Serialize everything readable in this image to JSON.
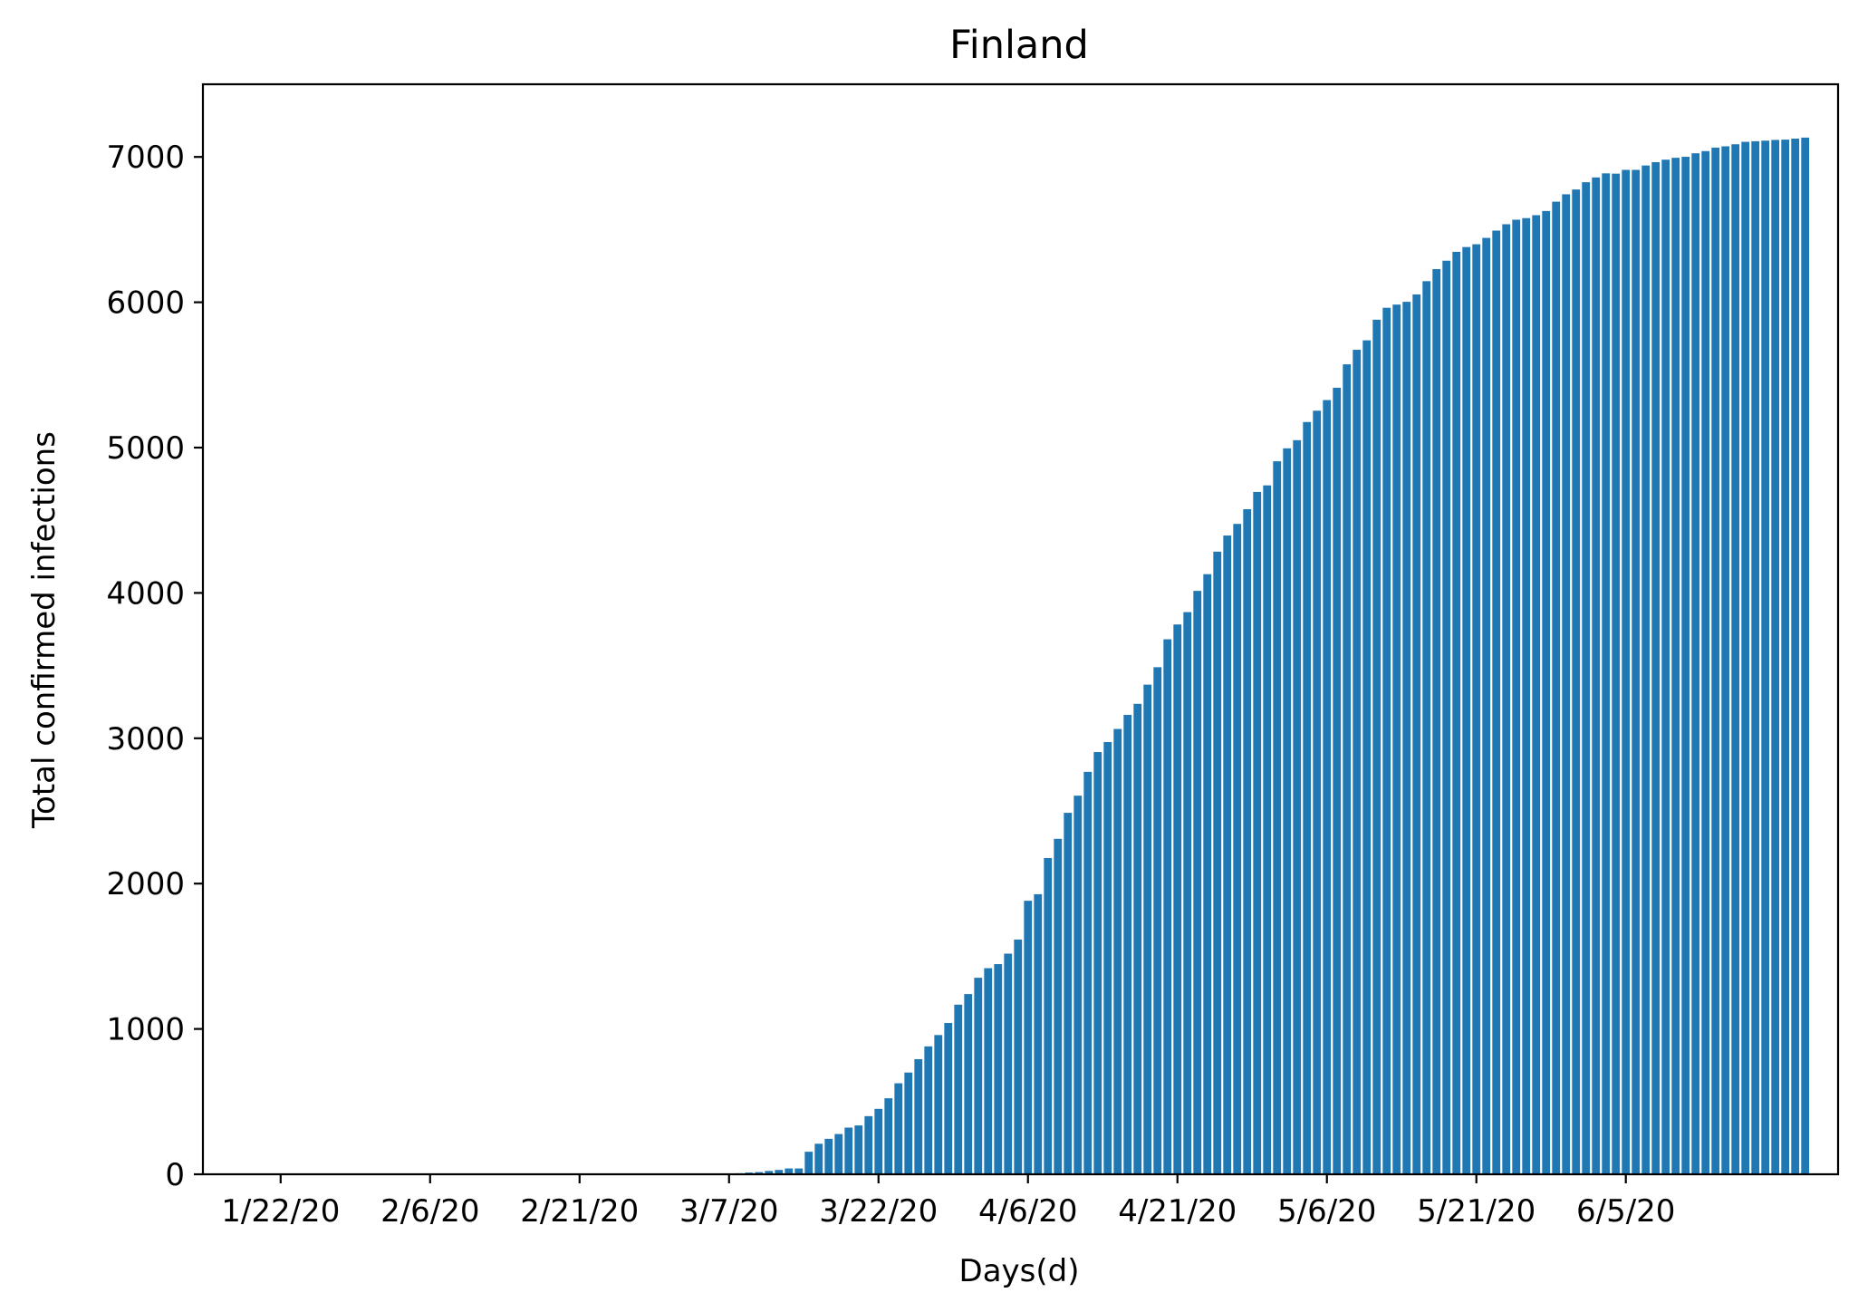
{
  "chart_data": {
    "type": "bar",
    "title": "Finland",
    "xlabel": "Days(d)",
    "ylabel": "Total confirmed infections",
    "ylim": [
      0,
      7500
    ],
    "yticks": [
      0,
      1000,
      2000,
      3000,
      4000,
      5000,
      6000,
      7000
    ],
    "xtick_labels": [
      "1/22/20",
      "2/6/20",
      "2/21/20",
      "3/7/20",
      "3/22/20",
      "4/6/20",
      "4/21/20",
      "5/6/20",
      "5/21/20",
      "6/5/20"
    ],
    "xtick_indices": [
      0,
      15,
      30,
      45,
      60,
      75,
      90,
      105,
      120,
      135
    ],
    "xlim": [
      -7.8,
      156.3
    ],
    "bar_color": "#1f77b4",
    "grid": false,
    "start_date": "1/22/20",
    "values": [
      0,
      0,
      0,
      0,
      0,
      0,
      0,
      0,
      0,
      0,
      0,
      0,
      0,
      0,
      0,
      0,
      0,
      0,
      0,
      0,
      0,
      0,
      0,
      0,
      0,
      0,
      0,
      0,
      0,
      0,
      0,
      0,
      0,
      0,
      0,
      0,
      0,
      0,
      0,
      0,
      0,
      0,
      0,
      0,
      0,
      6,
      7,
      12,
      15,
      23,
      30,
      40,
      40,
      155,
      210,
      244,
      277,
      321,
      336,
      400,
      450,
      523,
      626,
      700,
      792,
      880,
      958,
      1041,
      1167,
      1240,
      1352,
      1418,
      1446,
      1518,
      1615,
      1882,
      1927,
      2176,
      2308,
      2487,
      2605,
      2769,
      2905,
      2974,
      3064,
      3161,
      3237,
      3369,
      3489,
      3681,
      3783,
      3868,
      4014,
      4129,
      4284,
      4395,
      4475,
      4576,
      4695,
      4740,
      4906,
      4995,
      5051,
      5176,
      5254,
      5327,
      5412,
      5573,
      5673,
      5738,
      5880,
      5962,
      5984,
      6003,
      6054,
      6145,
      6228,
      6286,
      6347,
      6380,
      6399,
      6443,
      6493,
      6537,
      6568,
      6579,
      6599,
      6628,
      6692,
      6743,
      6776,
      6826,
      6859,
      6887,
      6885,
      6911,
      6911,
      6941,
      6964,
      6981,
      6994,
      7001,
      7025,
      7040,
      7064,
      7073,
      7087,
      7104,
      7108,
      7112,
      7117,
      7119,
      7126,
      7133
    ]
  }
}
